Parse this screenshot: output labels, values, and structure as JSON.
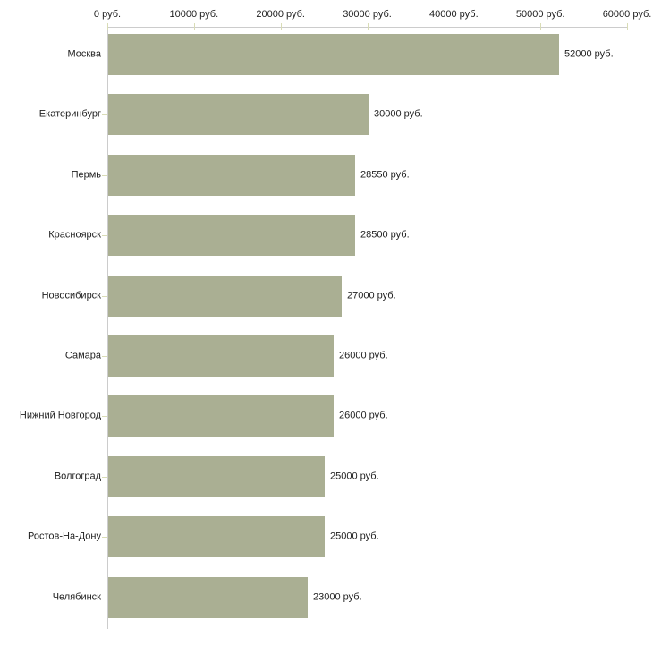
{
  "chart_data": {
    "type": "bar",
    "orientation": "horizontal",
    "title": "",
    "xlabel": "",
    "ylabel": "",
    "categories": [
      "Москва",
      "Екатеринбург",
      "Пермь",
      "Красноярск",
      "Новосибирск",
      "Самара",
      "Нижний Новгород",
      "Волгоград",
      "Ростов-На-Дону",
      "Челябинск"
    ],
    "values": [
      52000,
      30000,
      28550,
      28500,
      27000,
      26000,
      26000,
      25000,
      25000,
      23000
    ],
    "value_labels": [
      "52000 руб.",
      "30000 руб.",
      "28550 руб.",
      "28500 руб.",
      "27000 руб.",
      "26000 руб.",
      "26000 руб.",
      "25000 руб.",
      "25000 руб.",
      "23000 руб."
    ],
    "x_axis": {
      "position": "top",
      "xlim": [
        0,
        60000
      ],
      "ticks": [
        0,
        10000,
        20000,
        30000,
        40000,
        50000,
        60000
      ],
      "tick_labels": [
        "0 руб.",
        "10000 руб.",
        "20000 руб.",
        "30000 руб.",
        "40000 руб.",
        "50000 руб.",
        "60000 руб."
      ]
    },
    "legend": "none",
    "grid": false,
    "colors": {
      "bar": "#aaaf93",
      "axis_line": "#cccccc",
      "tick_mark": "#d9dcb6",
      "text": "#1f1f1f",
      "background": "#ffffff"
    }
  }
}
